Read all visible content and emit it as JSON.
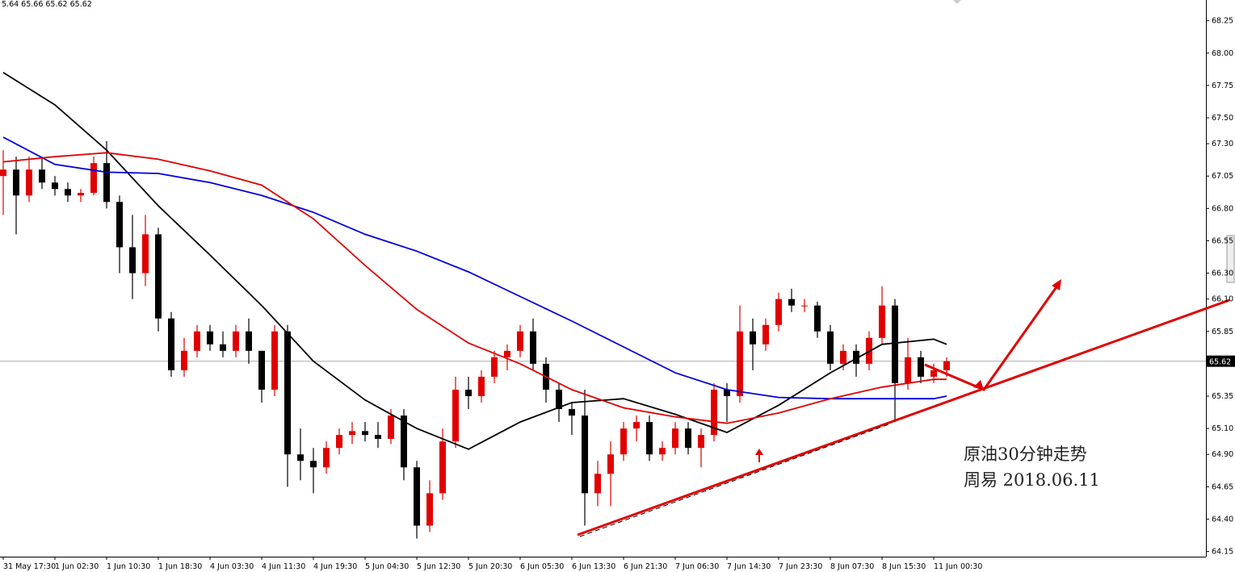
{
  "chart_data": {
    "type": "candlestick",
    "info_text": "5.64 65.66 65.62 65.62",
    "categories": [
      "31 May 17:30",
      null,
      null,
      null,
      "1 Jun 02:30",
      null,
      null,
      null,
      "1 Jun 10:30",
      null,
      null,
      null,
      "1 Jun 18:30",
      null,
      null,
      null,
      "4 Jun 03:30",
      null,
      null,
      null,
      "4 Jun 11:30",
      null,
      null,
      null,
      "4 Jun 19:30",
      null,
      null,
      null,
      "5 Jun 04:30",
      null,
      null,
      null,
      "5 Jun 12:30",
      null,
      null,
      null,
      "5 Jun 20:30",
      null,
      null,
      null,
      "6 Jun 05:30",
      null,
      null,
      null,
      "6 Jun 13:30",
      null,
      null,
      null,
      "6 Jun 21:30",
      null,
      null,
      null,
      "7 Jun 06:30",
      null,
      null,
      null,
      "7 Jun 14:30",
      null,
      null,
      null,
      "7 Jun 23:30",
      null,
      null,
      null,
      "8 Jun 07:30",
      null,
      null,
      null,
      "8 Jun 15:30",
      null,
      null,
      null,
      "11 Jun 00:30",
      null
    ],
    "candles": {
      "up_color": "#e00000",
      "down_color": "#000000",
      "open": [
        67.05,
        67.1,
        66.9,
        67.1,
        67.0,
        66.95,
        66.9,
        66.92,
        67.15,
        66.85,
        66.5,
        66.3,
        66.6,
        65.95,
        65.55,
        65.7,
        65.85,
        65.75,
        65.7,
        65.85,
        65.7,
        65.4,
        65.85,
        64.9,
        64.85,
        64.8,
        64.95,
        65.05,
        65.08,
        65.05,
        65.02,
        65.2,
        64.8,
        64.35,
        64.6,
        65.0,
        65.4,
        65.35,
        65.5,
        65.65,
        65.7,
        65.85,
        65.6,
        65.4,
        65.25,
        65.2,
        64.6,
        64.75,
        64.9,
        65.1,
        65.15,
        64.9,
        64.95,
        65.1,
        64.95,
        65.05,
        65.4,
        65.35,
        65.85,
        65.75,
        65.9,
        66.1,
        66.05,
        66.05,
        65.85,
        65.6,
        65.7,
        65.6,
        65.8,
        66.05,
        65.45,
        65.65,
        65.5,
        65.55
      ],
      "high": [
        67.25,
        67.2,
        67.2,
        67.2,
        67.05,
        67.0,
        66.95,
        67.2,
        67.32,
        66.9,
        66.75,
        66.75,
        66.65,
        66.0,
        65.8,
        65.9,
        65.9,
        65.85,
        65.9,
        65.95,
        65.7,
        65.9,
        65.9,
        65.1,
        64.95,
        65.0,
        65.1,
        65.15,
        65.15,
        65.15,
        65.25,
        65.25,
        64.85,
        64.7,
        65.1,
        65.5,
        65.5,
        65.55,
        65.7,
        65.75,
        65.9,
        65.95,
        65.65,
        65.45,
        65.3,
        65.4,
        64.85,
        65.0,
        65.15,
        65.2,
        65.2,
        65.0,
        65.15,
        65.15,
        65.1,
        65.45,
        65.45,
        66.05,
        65.95,
        65.95,
        66.15,
        66.18,
        66.1,
        66.08,
        65.9,
        65.75,
        65.75,
        65.85,
        66.2,
        66.1,
        65.8,
        65.7,
        65.6,
        65.65
      ],
      "low": [
        66.75,
        66.6,
        66.85,
        66.95,
        66.9,
        66.85,
        66.85,
        66.9,
        66.8,
        66.3,
        66.1,
        66.2,
        65.85,
        65.5,
        65.5,
        65.65,
        65.7,
        65.65,
        65.65,
        65.6,
        65.3,
        65.35,
        64.65,
        64.7,
        64.6,
        64.75,
        64.9,
        64.98,
        65.0,
        64.95,
        64.98,
        64.7,
        64.25,
        64.3,
        64.55,
        64.95,
        65.25,
        65.3,
        65.45,
        65.55,
        65.65,
        65.55,
        65.3,
        65.15,
        65.05,
        64.35,
        64.5,
        64.5,
        64.85,
        65.0,
        64.85,
        64.85,
        64.9,
        64.9,
        64.8,
        65.0,
        65.15,
        65.3,
        65.55,
        65.7,
        65.85,
        66.0,
        66.0,
        65.8,
        65.55,
        65.55,
        65.5,
        65.55,
        65.75,
        65.15,
        65.4,
        65.45,
        65.45,
        65.5
      ],
      "close": [
        67.1,
        66.9,
        67.1,
        67.0,
        66.95,
        66.9,
        66.92,
        67.15,
        66.85,
        66.5,
        66.3,
        66.6,
        65.95,
        65.55,
        65.7,
        65.85,
        65.75,
        65.7,
        65.85,
        65.7,
        65.4,
        65.85,
        64.9,
        64.85,
        64.8,
        64.95,
        65.05,
        65.08,
        65.05,
        65.02,
        65.2,
        64.8,
        64.35,
        64.6,
        65.0,
        65.4,
        65.35,
        65.5,
        65.65,
        65.7,
        65.85,
        65.6,
        65.4,
        65.25,
        65.2,
        64.6,
        64.75,
        64.9,
        65.1,
        65.15,
        64.9,
        64.95,
        65.1,
        64.95,
        65.05,
        65.4,
        65.35,
        65.85,
        65.75,
        65.9,
        66.1,
        66.05,
        66.05,
        65.85,
        65.6,
        65.7,
        65.6,
        65.8,
        66.05,
        65.45,
        65.65,
        65.5,
        65.55,
        65.62
      ]
    },
    "lines": [
      {
        "color": "#000000",
        "x": [
          0,
          4,
          8,
          12,
          16,
          20,
          24,
          28,
          32,
          36,
          40,
          44,
          48,
          52,
          56,
          60,
          64,
          68,
          72,
          73
        ],
        "values": [
          67.85,
          67.6,
          67.25,
          66.82,
          66.44,
          66.05,
          65.62,
          65.32,
          65.1,
          64.94,
          65.15,
          65.3,
          65.33,
          65.21,
          65.07,
          65.28,
          65.53,
          65.75,
          65.79,
          65.75
        ]
      },
      {
        "color": "#0000dd",
        "x": [
          0,
          4,
          8,
          12,
          16,
          20,
          24,
          28,
          32,
          36,
          40,
          44,
          48,
          52,
          56,
          60,
          64,
          68,
          72,
          73
        ],
        "values": [
          67.35,
          67.14,
          67.08,
          67.07,
          67.0,
          66.9,
          66.77,
          66.6,
          66.47,
          66.31,
          66.12,
          65.93,
          65.73,
          65.53,
          65.4,
          65.34,
          65.33,
          65.33,
          65.33,
          65.35
        ]
      },
      {
        "color": "#e00000",
        "x": [
          0,
          4,
          8,
          12,
          16,
          20,
          24,
          28,
          32,
          36,
          40,
          44,
          48,
          52,
          56,
          60,
          64,
          68,
          72,
          73
        ],
        "values": [
          67.16,
          67.2,
          67.23,
          67.18,
          67.09,
          66.98,
          66.72,
          66.36,
          66.02,
          65.76,
          65.6,
          65.4,
          65.26,
          65.19,
          65.14,
          65.22,
          65.33,
          65.42,
          65.48,
          65.48
        ]
      }
    ],
    "ylim": [
      64.11,
      68.41
    ],
    "yticks": [
      68.25,
      68.0,
      67.75,
      67.5,
      67.3,
      67.05,
      66.8,
      66.55,
      66.3,
      66.1,
      65.85,
      65.35,
      65.1,
      64.9,
      64.65,
      64.4,
      64.15
    ],
    "last_price": 65.62,
    "annotations": [
      "原油30分钟走势",
      "周易  2018.06.11"
    ]
  }
}
